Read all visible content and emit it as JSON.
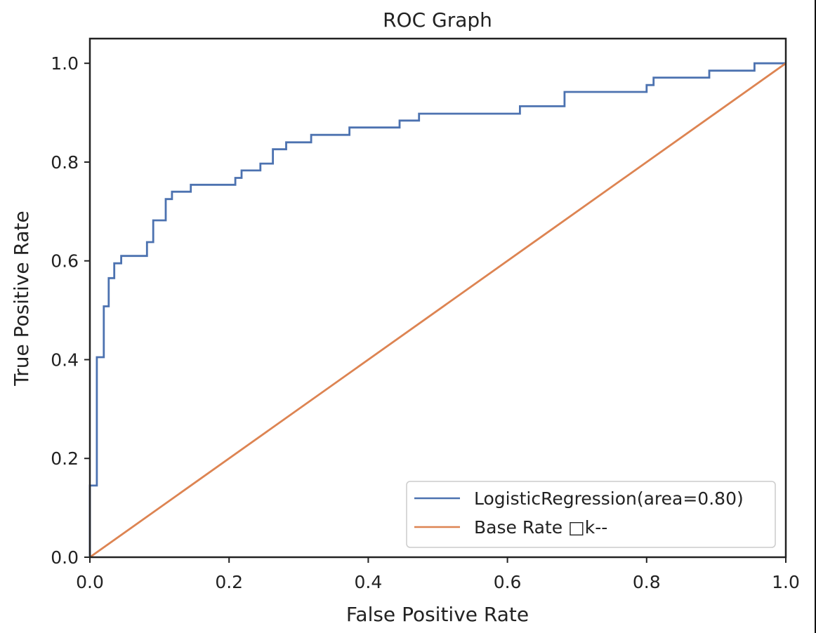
{
  "chart_data": {
    "type": "line",
    "title": "ROC Graph",
    "xlabel": "False Positive Rate",
    "ylabel": "True Positive Rate",
    "xlim": [
      0.0,
      1.0
    ],
    "ylim": [
      0.0,
      1.05
    ],
    "xticks": [
      0.0,
      0.2,
      0.4,
      0.6,
      0.8,
      1.0
    ],
    "xtick_labels": [
      "0.0",
      "0.2",
      "0.4",
      "0.6",
      "0.8",
      "1.0"
    ],
    "yticks": [
      0.0,
      0.2,
      0.4,
      0.6,
      0.8,
      1.0
    ],
    "ytick_labels": [
      "0.0",
      "0.2",
      "0.4",
      "0.6",
      "0.8",
      "1.0"
    ],
    "legend_position": "bottom-right",
    "series": [
      {
        "name": "LogisticRegression(area=0.80)",
        "color": "#4c72b0",
        "x": [
          0.0,
          0.0,
          0.0,
          0.0,
          0.01,
          0.01,
          0.02,
          0.02,
          0.027,
          0.027,
          0.035,
          0.035,
          0.045,
          0.045,
          0.082,
          0.082,
          0.091,
          0.091,
          0.109,
          0.109,
          0.118,
          0.118,
          0.145,
          0.145,
          0.209,
          0.209,
          0.218,
          0.218,
          0.245,
          0.245,
          0.263,
          0.263,
          0.282,
          0.282,
          0.318,
          0.318,
          0.373,
          0.373,
          0.445,
          0.445,
          0.473,
          0.473,
          0.618,
          0.618,
          0.682,
          0.682,
          0.8,
          0.8,
          0.81,
          0.81,
          0.89,
          0.89,
          0.955,
          0.955,
          1.0
        ],
        "y": [
          0.0,
          0.055,
          0.11,
          0.145,
          0.145,
          0.405,
          0.405,
          0.508,
          0.508,
          0.565,
          0.565,
          0.595,
          0.595,
          0.61,
          0.61,
          0.638,
          0.638,
          0.682,
          0.682,
          0.725,
          0.725,
          0.74,
          0.74,
          0.754,
          0.754,
          0.768,
          0.768,
          0.783,
          0.783,
          0.797,
          0.797,
          0.826,
          0.826,
          0.84,
          0.84,
          0.855,
          0.855,
          0.87,
          0.87,
          0.884,
          0.884,
          0.898,
          0.898,
          0.913,
          0.913,
          0.942,
          0.942,
          0.956,
          0.956,
          0.971,
          0.971,
          0.985,
          0.985,
          1.0,
          1.0
        ]
      },
      {
        "name": "Base Rate □k--",
        "color": "#dd8452",
        "x": [
          0.0,
          1.0
        ],
        "y": [
          0.0,
          1.0
        ]
      }
    ]
  }
}
